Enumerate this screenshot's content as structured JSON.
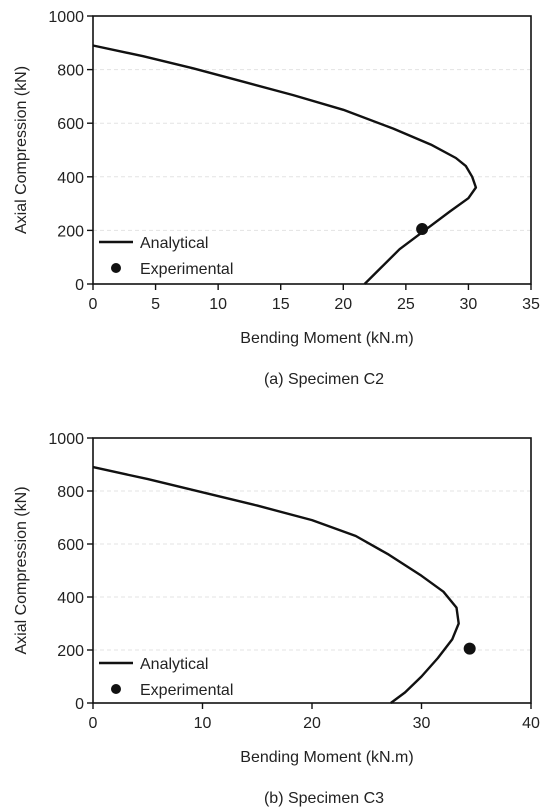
{
  "chart_data": [
    {
      "type": "line",
      "caption": "(a) Specimen C2",
      "xlabel": "Bending Moment (kN.m)",
      "ylabel": "Axial Compression (kN)",
      "xlim": [
        0,
        35
      ],
      "ylim": [
        0,
        1000
      ],
      "xticks": [
        0,
        5,
        10,
        15,
        20,
        25,
        30,
        35
      ],
      "yticks": [
        0,
        200,
        400,
        600,
        800,
        1000
      ],
      "grid": "horizontal dashed",
      "legend_position": "bottom-left",
      "series": [
        {
          "name": "Analytical",
          "style": "line",
          "color": "#111111",
          "x": [
            0,
            4,
            8,
            12,
            16,
            20,
            24,
            27,
            29,
            29.8,
            30.3,
            30.6,
            30.0,
            28.5,
            26.5,
            24.5,
            23.0,
            21.7
          ],
          "y": [
            890,
            850,
            805,
            755,
            705,
            650,
            580,
            520,
            470,
            440,
            400,
            360,
            320,
            270,
            200,
            130,
            60,
            0
          ]
        },
        {
          "name": "Experimental",
          "style": "marker",
          "color": "#111111",
          "x": [
            26.3
          ],
          "y": [
            205
          ]
        }
      ]
    },
    {
      "type": "line",
      "caption": "(b) Specimen C3",
      "xlabel": "Bending Moment (kN.m)",
      "ylabel": "Axial Compression (kN)",
      "xlim": [
        0,
        40
      ],
      "ylim": [
        0,
        1000
      ],
      "xticks": [
        0,
        10,
        20,
        30,
        40
      ],
      "yticks": [
        0,
        200,
        400,
        600,
        800,
        1000
      ],
      "grid": "horizontal dashed",
      "legend_position": "bottom-left",
      "series": [
        {
          "name": "Analytical",
          "style": "line",
          "color": "#111111",
          "x": [
            0,
            5,
            10,
            15,
            20,
            24,
            27,
            30,
            32,
            33.2,
            33.4,
            32.8,
            31.5,
            30.0,
            28.5,
            27.2
          ],
          "y": [
            890,
            845,
            795,
            745,
            690,
            630,
            560,
            480,
            420,
            360,
            300,
            240,
            170,
            100,
            40,
            0
          ]
        },
        {
          "name": "Experimental",
          "style": "marker",
          "color": "#111111",
          "x": [
            34.4
          ],
          "y": [
            205
          ]
        }
      ]
    }
  ]
}
